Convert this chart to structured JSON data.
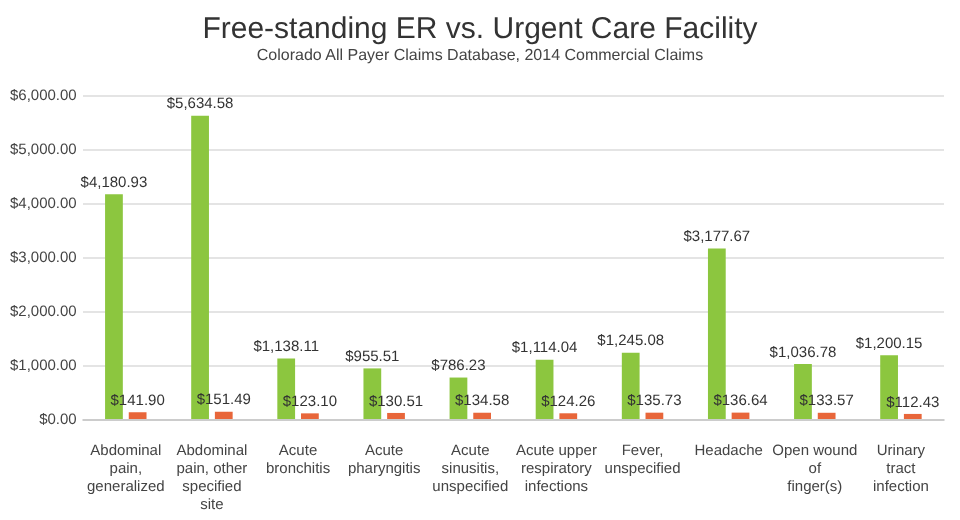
{
  "chart_data": {
    "type": "bar",
    "title": "Free-standing ER vs. Urgent Care Facility",
    "subtitle": "Colorado All Payer Claims Database, 2014 Commercial Claims",
    "categories": [
      "Abdominal pain, generalized",
      "Abdominal pain, other specified site",
      "Acute bronchitis",
      "Acute pharyngitis",
      "Acute sinusitis, unspecified",
      "Acute upper respiratory infections",
      "Fever, unspecified",
      "Headache",
      "Open wound of finger(s)",
      "Urinary tract infection"
    ],
    "series": [
      {
        "color": "#8cc63f",
        "values": [
          4180.93,
          5634.58,
          1138.11,
          955.51,
          786.23,
          1114.04,
          1245.08,
          3177.67,
          1036.78,
          1200.15
        ],
        "value_labels": [
          "$4,180.93",
          "$5,634.58",
          "$1,138.11",
          "$955.51",
          "$786.23",
          "$1,114.04",
          "$1,245.08",
          "$3,177.67",
          "$1,036.78",
          "$1,200.15"
        ]
      },
      {
        "color": "#e8663a",
        "values": [
          141.9,
          151.49,
          123.1,
          130.51,
          134.58,
          124.26,
          135.73,
          136.64,
          133.57,
          112.43
        ],
        "value_labels": [
          "$141.90",
          "$151.49",
          "$123.10",
          "$130.51",
          "$134.58",
          "$124.26",
          "$135.73",
          "$136.64",
          "$133.57",
          "$112.43"
        ]
      }
    ],
    "ylim": [
      0,
      6000
    ],
    "yticks": [
      {
        "value": 0,
        "label": "$0.00"
      },
      {
        "value": 1000,
        "label": "$1,000.00"
      },
      {
        "value": 2000,
        "label": "$2,000.00"
      },
      {
        "value": 3000,
        "label": "$3,000.00"
      },
      {
        "value": 4000,
        "label": "$4,000.00"
      },
      {
        "value": 5000,
        "label": "$5,000.00"
      },
      {
        "value": 6000,
        "label": "$6,000.00"
      }
    ],
    "grid": "y"
  }
}
